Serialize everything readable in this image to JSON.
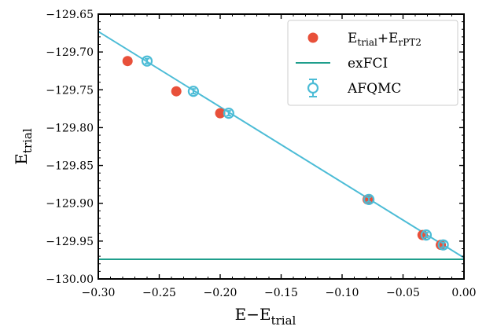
{
  "chart_data": {
    "type": "scatter",
    "title": "",
    "xlabel": "E−E",
    "xlabel_sub": "trial",
    "ylabel": "E",
    "ylabel_sub": "trial",
    "xlim": [
      -0.3,
      0.0
    ],
    "ylim": [
      -130.0,
      -129.65
    ],
    "x_ticks": [
      -0.3,
      -0.25,
      -0.2,
      -0.15,
      -0.1,
      -0.05,
      0.0
    ],
    "x_tick_labels": [
      "−0.30",
      "−0.25",
      "−0.20",
      "−0.15",
      "−0.10",
      "−0.05",
      "0.00"
    ],
    "y_ticks": [
      -130.0,
      -129.95,
      -129.9,
      -129.85,
      -129.8,
      -129.75,
      -129.7,
      -129.65
    ],
    "y_tick_labels": [
      "−130.00",
      "−129.95",
      "−129.90",
      "−129.85",
      "−129.80",
      "−129.75",
      "−129.70",
      "−129.65"
    ],
    "grid": false,
    "legend_position": "top-right",
    "series": [
      {
        "name_main": "E",
        "name_sub1": "trial",
        "name_mid": "+E",
        "name_sub2": "rPT2",
        "kind": "scatter-filled",
        "color": "#e8503a",
        "x": [
          -0.276,
          -0.236,
          -0.2,
          -0.079,
          -0.034,
          -0.019
        ],
        "y": [
          -129.712,
          -129.752,
          -129.781,
          -129.895,
          -129.942,
          -129.955
        ]
      },
      {
        "name": "exFCI",
        "kind": "hline",
        "color": "#1f9e8c",
        "y": -129.974
      },
      {
        "name": "AFQMC",
        "kind": "scatter-open-errorbar",
        "color": "#4cbcd6",
        "x": [
          -0.26,
          -0.222,
          -0.193,
          -0.078,
          -0.031,
          -0.017
        ],
        "y": [
          -129.712,
          -129.752,
          -129.781,
          -129.895,
          -129.942,
          -129.955
        ],
        "fit_line": {
          "x": [
            -0.3,
            0.0
          ],
          "y": [
            -129.673,
            -129.972
          ]
        }
      }
    ]
  }
}
